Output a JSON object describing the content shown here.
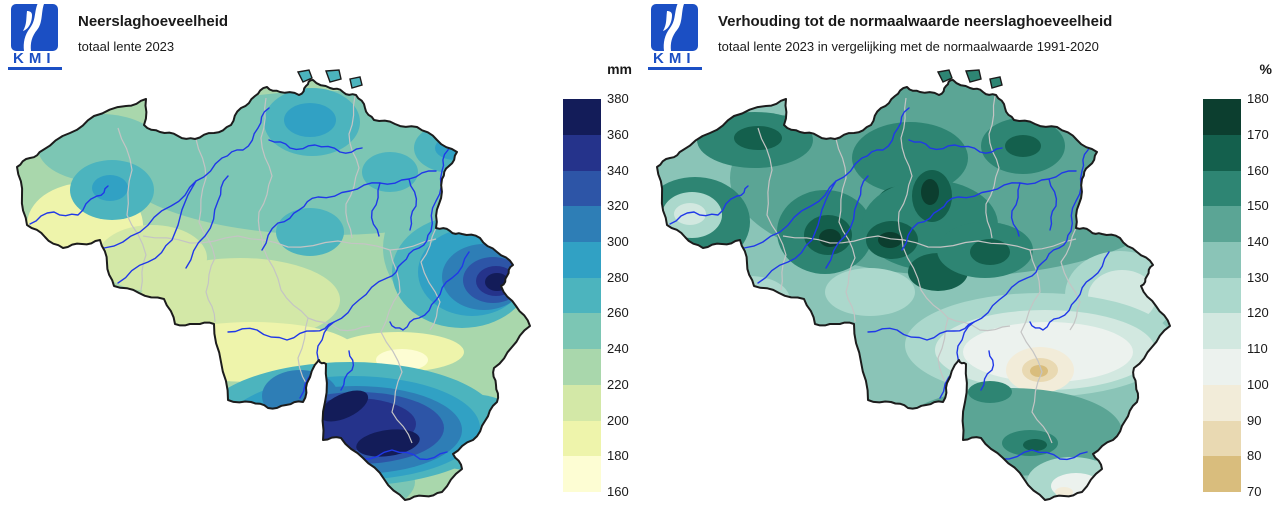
{
  "map": {
    "region": "België",
    "border_color": "#1c1c1c",
    "river_color": "#2038e8",
    "province_border_color": "#c4c4c4",
    "logo_blue": "#1b4fc4"
  },
  "panels": [
    {
      "logo_text": "KMI",
      "title": "Neerslaghoeveelheid",
      "subtitle": "totaal lente 2023",
      "legend": {
        "unit": "mm",
        "labels": [
          "380",
          "360",
          "340",
          "320",
          "300",
          "280",
          "260",
          "240",
          "220",
          "200",
          "180",
          "160"
        ],
        "colors": [
          "#131c59",
          "#25338b",
          "#2d55a7",
          "#2e7eb6",
          "#31a1c4",
          "#4cb4be",
          "#7cc6b4",
          "#a9d7ac",
          "#d3e8a7",
          "#eef4ab",
          "#fdfdd3"
        ]
      }
    },
    {
      "logo_text": "KMI",
      "title": "Verhouding tot de normaalwaarde neerslaghoeveelheid",
      "subtitle": "totaal lente 2023 in vergelijking met de normaalwaarde 1991-2020",
      "legend": {
        "unit": "%",
        "labels": [
          "180",
          "170",
          "160",
          "150",
          "140",
          "130",
          "120",
          "110",
          "100",
          "90",
          "80",
          "70"
        ],
        "colors": [
          "#0c3e2f",
          "#14604d",
          "#2e8573",
          "#5ba595",
          "#8ac4b7",
          "#abd8cc",
          "#d2e8e0",
          "#ecf2ee",
          "#f2ecd9",
          "#e9d9b2",
          "#d9bd7d"
        ]
      }
    }
  ]
}
